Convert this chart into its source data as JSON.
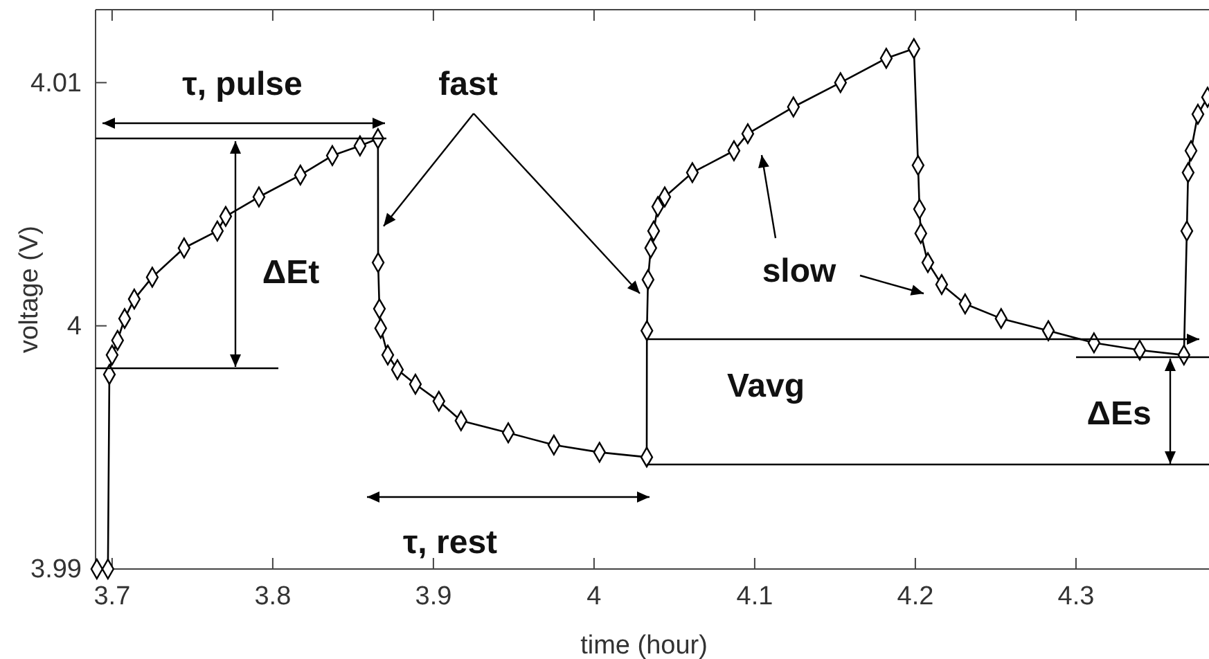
{
  "chart_data": {
    "type": "line",
    "xlabel": "time (hour)",
    "ylabel": "voltage (V)",
    "xlim": [
      3.6897,
      4.3828
    ],
    "xticks": [
      3.7,
      3.8,
      3.9,
      4,
      4.1,
      4.2,
      4.3
    ],
    "ylim": [
      3.99,
      4.013
    ],
    "yticks": [
      3.99,
      4,
      4.01
    ],
    "marker": "diamond",
    "line_style": "solid",
    "series": [
      {
        "color": "#000000",
        "x": [
          3.6905,
          3.6974,
          3.6983,
          3.7,
          3.7034,
          3.7078,
          3.7138,
          3.725,
          3.7448,
          3.7655,
          3.7707,
          3.7914,
          3.8172,
          3.8371,
          3.8543,
          3.8655,
          3.8656,
          3.8664,
          3.8672,
          3.8716,
          3.8776,
          3.8888,
          3.9034,
          3.9172,
          3.9466,
          3.975,
          4.0034,
          4.0328,
          4.0329,
          4.0336,
          4.0353,
          4.0371,
          4.0397,
          4.044,
          4.0612,
          4.0871,
          4.0957,
          4.1241,
          4.1534,
          4.1819,
          4.1991,
          4.2017,
          4.2026,
          4.2034,
          4.2078,
          4.2164,
          4.231,
          4.2534,
          4.2828,
          4.3112,
          4.3397,
          4.3672,
          4.369,
          4.3698,
          4.3716,
          4.3759,
          4.3819
        ],
        "values": [
          3.99,
          3.99,
          3.998,
          3.9988,
          3.9994,
          4.0003,
          4.0011,
          4.002,
          4.0032,
          4.0039,
          4.0045,
          4.0053,
          4.0062,
          4.007,
          4.0074,
          4.0077,
          4.0026,
          4.0007,
          3.9999,
          3.9988,
          3.9982,
          3.9976,
          3.9969,
          3.9961,
          3.9956,
          3.9951,
          3.9948,
          3.9946,
          3.9998,
          4.0019,
          4.0032,
          4.0039,
          4.0049,
          4.0053,
          4.0063,
          4.0072,
          4.0079,
          4.009,
          4.01,
          4.011,
          4.0114,
          4.0066,
          4.0048,
          4.0038,
          4.0026,
          4.0017,
          4.0009,
          4.0003,
          3.9998,
          3.9993,
          3.999,
          3.9988,
          4.0039,
          4.0063,
          4.0072,
          4.0087,
          4.0094
        ]
      }
    ],
    "ref_lines": [
      {
        "axis": "y",
        "value": 3.9943,
        "color": "#000000"
      }
    ],
    "annotations": [
      "τ, pulse",
      {
        "text": "fast",
        "x": 3.869,
        "y": 4.0041
      },
      "ΔEt",
      "slow",
      "Vavg",
      "ΔEs",
      "τ, rest"
    ]
  }
}
